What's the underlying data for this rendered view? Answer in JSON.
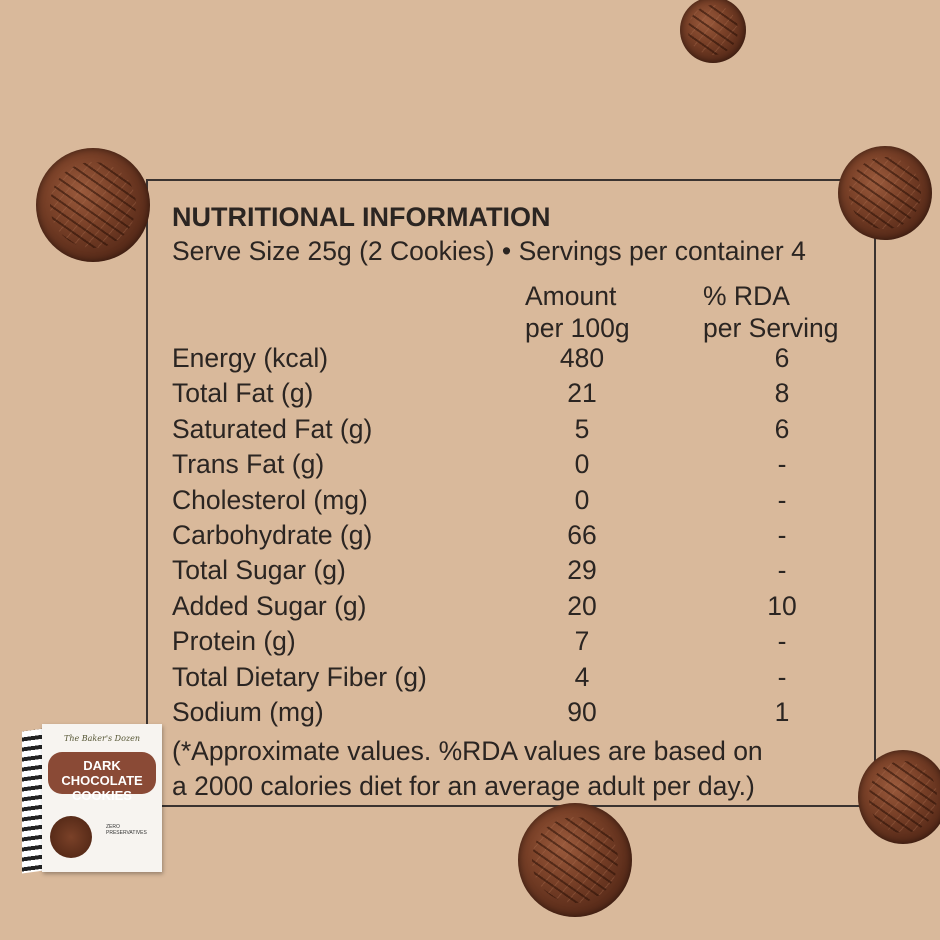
{
  "title": "NUTRITIONAL INFORMATION",
  "subtitle": "Serve Size 25g (2 Cookies) • Servings per container 4",
  "headers": {
    "amount_1": "Amount",
    "amount_2": "per 100g",
    "rda_1": "% RDA",
    "rda_2": "per Serving"
  },
  "rows": [
    {
      "label": "Energy (kcal)",
      "amount": "480",
      "rda": "6"
    },
    {
      "label": "Total Fat (g)",
      "amount": "21",
      "rda": "8"
    },
    {
      "label": "Saturated Fat (g)",
      "amount": "5",
      "rda": "6"
    },
    {
      "label": "Trans Fat (g)",
      "amount": "0",
      "rda": "-"
    },
    {
      "label": "Cholesterol (mg)",
      "amount": "0",
      "rda": "-"
    },
    {
      "label": "Carbohydrate (g)",
      "amount": "66",
      "rda": "-"
    },
    {
      "label": "Total Sugar (g)",
      "amount": "29",
      "rda": "-"
    },
    {
      "label": "Added Sugar (g)",
      "amount": "20",
      "rda": "10"
    },
    {
      "label": "Protein (g)",
      "amount": "7",
      "rda": "-"
    },
    {
      "label": "Total Dietary Fiber (g)",
      "amount": "4",
      "rda": "-"
    },
    {
      "label": "Sodium (mg)",
      "amount": "90",
      "rda": "1"
    }
  ],
  "footnote": [
    "(*Approximate values. %RDA values are based on",
    "a 2000 calories diet for an average adult per day.)"
  ],
  "product": {
    "brand": "The Baker's Dozen",
    "name": "DARK CHOCOLATE COOKIES",
    "tag": "ZERO PRESERVATIVES"
  },
  "colors": {
    "background": "#d9b99b",
    "text": "#2b2522",
    "banner": "#8a4a36"
  }
}
